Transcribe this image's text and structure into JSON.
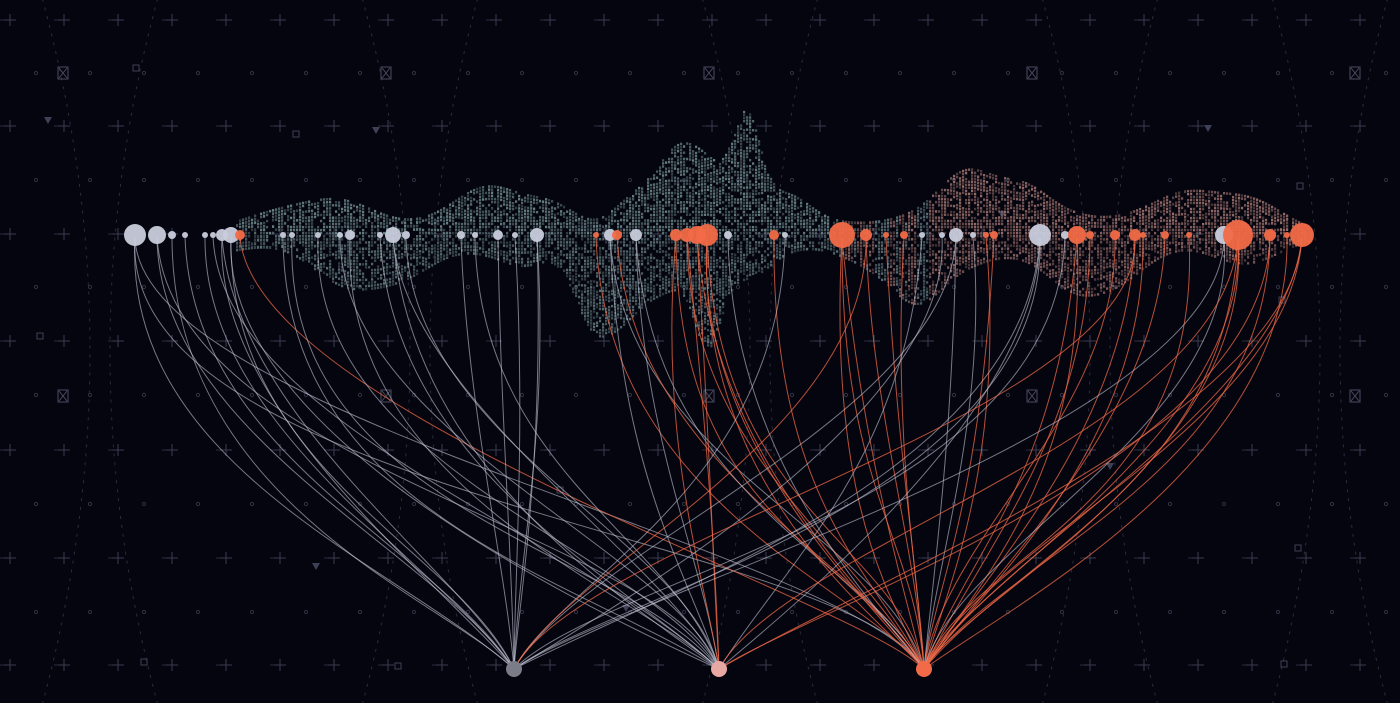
{
  "colors": {
    "background": "#05050f",
    "grid": "#2a2c3c",
    "node_light": "#c8ccdc",
    "node_orange": "#f26a47",
    "node_gray": "#7a7c88",
    "node_pink": "#e8a8a4",
    "link_light": "#c3c7d6",
    "link_orange": "#f26a47",
    "stream_teal": "#7d9d9f",
    "stream_rose": "#b8857e"
  },
  "hubs": [
    {
      "name": "hub-gray",
      "color": "node_gray",
      "link_color": "link_light"
    },
    {
      "name": "hub-pink",
      "color": "node_pink",
      "link_color": "link_light"
    },
    {
      "name": "hub-orange",
      "color": "node_orange",
      "link_color": "link_orange"
    }
  ],
  "icons": [
    "hourglass-icon",
    "triangle-icon",
    "square-icon",
    "circle-icon",
    "plus-icon"
  ]
}
